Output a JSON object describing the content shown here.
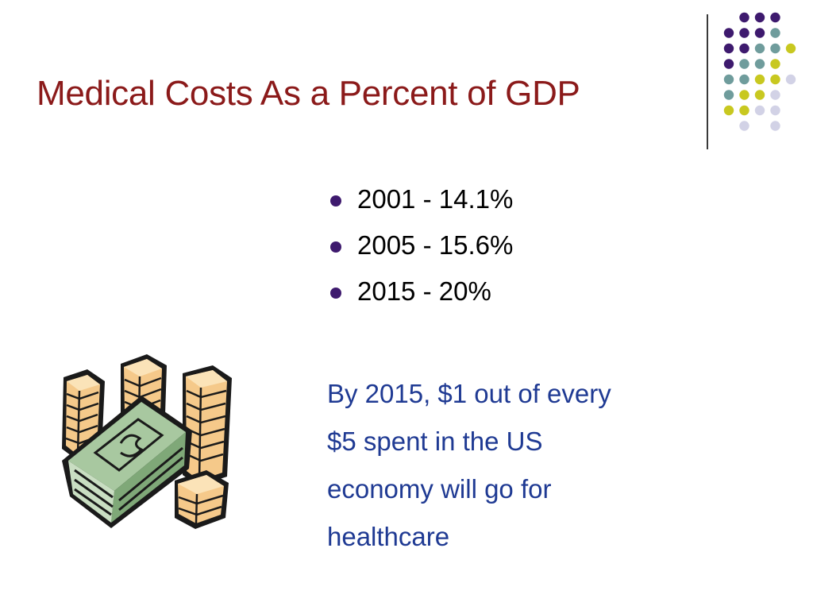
{
  "slide": {
    "title": "Medical Costs As a Percent of GDP",
    "bullets": [
      "2001 - 14.1%",
      "2005 - 15.6%",
      "2015 - 20%"
    ],
    "note_lines": [
      "By 2015, $1 out of every",
      "$5 spent in the US",
      "economy will go for",
      "healthcare"
    ]
  },
  "theme": {
    "title_color": "#8B1A1A",
    "note_color": "#1F3A93",
    "bullet_color": "#3E1A6E",
    "dot_colors": {
      "purple": "#3E1A6E",
      "teal": "#6F9C9C",
      "lime": "#C8C820",
      "lavender": "#D2D2E6"
    }
  },
  "decorations": {
    "clipart_icon": "money-stack-and-coins-icon"
  }
}
